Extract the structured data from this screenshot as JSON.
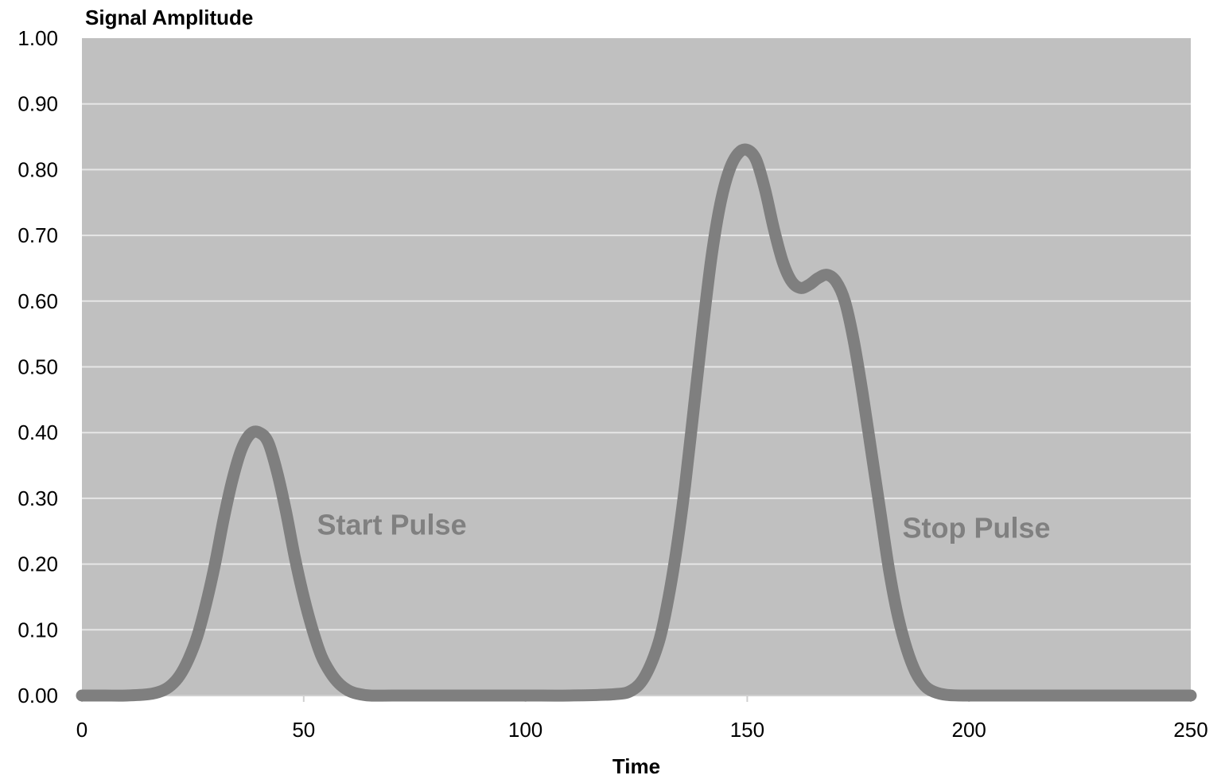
{
  "chart_data": {
    "type": "line",
    "title": "",
    "xlabel": "Time",
    "ylabel": "Signal Amplitude",
    "xlim": [
      0,
      250
    ],
    "ylim": [
      0,
      1.0
    ],
    "x_ticks": [
      "0",
      "50",
      "100",
      "150",
      "200",
      "250"
    ],
    "y_ticks": [
      "0.00",
      "0.10",
      "0.20",
      "0.30",
      "0.40",
      "0.50",
      "0.60",
      "0.70",
      "0.80",
      "0.90",
      "1.00"
    ],
    "grid": true,
    "legend": "none",
    "series": [
      {
        "x": [
          0,
          5,
          10,
          15,
          18,
          20,
          22,
          24,
          26,
          28,
          30,
          32,
          34,
          36,
          38,
          40,
          42,
          44,
          46,
          48,
          50,
          52,
          54,
          56,
          58,
          60,
          62,
          65,
          70,
          80,
          90,
          100,
          110,
          120,
          124,
          127,
          130,
          132,
          134,
          136,
          138,
          140,
          142,
          144,
          146,
          148,
          150,
          152,
          154,
          156,
          158,
          160,
          162,
          164,
          166,
          168,
          170,
          172,
          174,
          176,
          178,
          180,
          182,
          184,
          186,
          188,
          190,
          192,
          195,
          200,
          210,
          220,
          230,
          240,
          250
        ],
        "y": [
          0.0,
          0.0,
          0.0,
          0.002,
          0.007,
          0.015,
          0.03,
          0.055,
          0.09,
          0.14,
          0.2,
          0.27,
          0.33,
          0.375,
          0.398,
          0.4,
          0.385,
          0.34,
          0.28,
          0.21,
          0.15,
          0.1,
          0.06,
          0.035,
          0.018,
          0.008,
          0.003,
          0.0,
          0.0,
          0.0,
          0.0,
          0.0,
          0.0,
          0.002,
          0.008,
          0.03,
          0.08,
          0.14,
          0.22,
          0.32,
          0.44,
          0.56,
          0.67,
          0.75,
          0.8,
          0.825,
          0.83,
          0.815,
          0.77,
          0.71,
          0.66,
          0.63,
          0.62,
          0.625,
          0.635,
          0.64,
          0.63,
          0.6,
          0.54,
          0.46,
          0.37,
          0.28,
          0.19,
          0.12,
          0.07,
          0.035,
          0.015,
          0.006,
          0.001,
          0.0,
          0.0,
          0.0,
          0.0,
          0.0,
          0.0
        ]
      }
    ],
    "annotations": [
      {
        "text": "Start Pulse",
        "x": 53,
        "y": 0.245
      },
      {
        "text": "Stop Pulse",
        "x": 185,
        "y": 0.24
      }
    ],
    "colors": {
      "plot_background": "#c0c0c0",
      "gridline": "#e6e6e6",
      "line": "#7f7f7f",
      "annotation": "#808080"
    }
  }
}
